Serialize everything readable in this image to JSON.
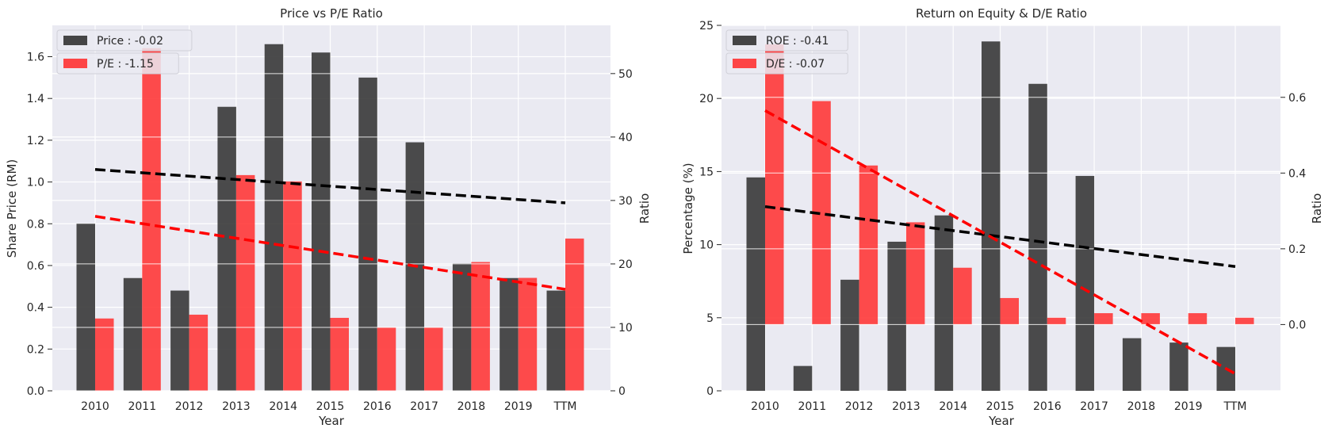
{
  "colors": {
    "panel_bg": "#EAEAF2",
    "grid": "#FFFFFF",
    "bar_primary": "#333333",
    "bar_secondary": "#FF3333",
    "trend_primary": "#000000",
    "trend_secondary": "#FF0000",
    "legend_bg": "#EAEAF2",
    "legend_border": "#D0D0D8"
  },
  "chart_data": [
    {
      "type": "bar",
      "title": "Price vs P/E Ratio",
      "xlabel": "Year",
      "ylabel_left": "Share Price (RM)",
      "ylabel_right": "Ratio",
      "categories": [
        "2010",
        "2011",
        "2012",
        "2013",
        "2014",
        "2015",
        "2016",
        "2017",
        "2018",
        "2019",
        "TTM"
      ],
      "ylim_left": [
        0,
        1.75
      ],
      "yticks_left": [
        0.0,
        0.2,
        0.4,
        0.6,
        0.8,
        1.0,
        1.2,
        1.4,
        1.6
      ],
      "ylim_right": [
        0,
        57.6
      ],
      "yticks_right": [
        0,
        10,
        20,
        30,
        40,
        50
      ],
      "grid": true,
      "legend_position": "top-left",
      "series": [
        {
          "name": "Price : -0.02",
          "axis": "left",
          "color": "#333333",
          "values": [
            0.8,
            0.54,
            0.48,
            1.36,
            1.66,
            1.62,
            1.5,
            1.19,
            0.61,
            0.54,
            0.48
          ],
          "trendline": {
            "color": "#000000",
            "start": 1.06,
            "end": 0.9,
            "from": "2010",
            "to": "TTM"
          }
        },
        {
          "name": "P/E : -1.15",
          "axis": "right",
          "color": "#FF3333",
          "values": [
            11.4,
            54.0,
            12.0,
            34.0,
            33.0,
            11.5,
            10.0,
            10.0,
            20.3,
            17.8,
            24.0
          ],
          "trendline": {
            "color": "#FF0000",
            "start": 27.5,
            "end": 16.0,
            "from": "2010",
            "to": "TTM"
          }
        }
      ]
    },
    {
      "type": "bar",
      "title": "Return on Equity & D/E Ratio",
      "xlabel": "Year",
      "ylabel_left": "Percentage (%)",
      "ylabel_right": "Ratio",
      "categories": [
        "2010",
        "2011",
        "2012",
        "2013",
        "2014",
        "2015",
        "2016",
        "2017",
        "2018",
        "2019",
        "TTM"
      ],
      "ylim_left": [
        0,
        25
      ],
      "yticks_left": [
        0,
        5,
        10,
        15,
        20,
        25
      ],
      "ylim_right": [
        -0.175,
        0.79
      ],
      "yticks_right": [
        0.0,
        0.2,
        0.4,
        0.6
      ],
      "grid": true,
      "legend_position": "top-left",
      "series": [
        {
          "name": "ROE : -0.41",
          "axis": "left",
          "color": "#333333",
          "values": [
            14.6,
            1.7,
            7.6,
            10.2,
            12.0,
            23.9,
            21.0,
            14.7,
            3.6,
            3.3,
            3.0
          ],
          "trendline": {
            "color": "#000000",
            "start": 12.6,
            "end": 8.5,
            "from": "2010",
            "to": "TTM"
          }
        },
        {
          "name": "D/E : -0.07",
          "axis": "right",
          "color": "#FF3333",
          "values": [
            0.74,
            0.59,
            0.42,
            0.27,
            0.15,
            0.07,
            0.018,
            0.03,
            0.03,
            0.03,
            0.018
          ],
          "trendline": {
            "color": "#FF0000",
            "start": 0.565,
            "end": -0.13,
            "from": "2010",
            "to": "TTM"
          }
        }
      ]
    }
  ]
}
